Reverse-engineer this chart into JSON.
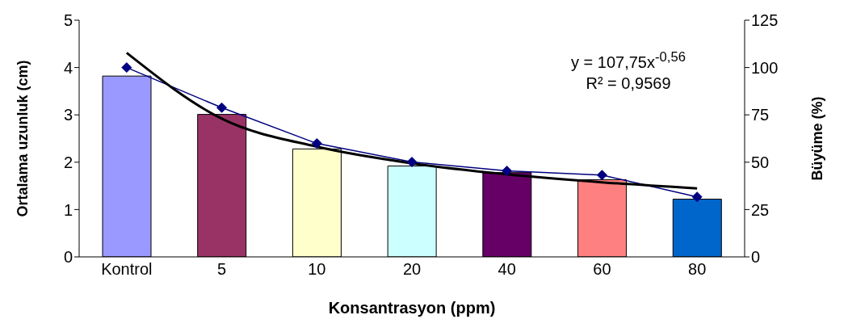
{
  "chart_data": {
    "type": "bar",
    "xlabel": "Konsantrasyon (ppm)",
    "ylabel": "Ortalama uzunluk (cm)",
    "y2label": "Büyüme (%)",
    "categories": [
      "Kontrol",
      "5",
      "10",
      "20",
      "40",
      "60",
      "80"
    ],
    "series": [
      {
        "colors": [
          "#9999ff",
          "#993366",
          "#ffffcc",
          "#ccffff",
          "#660066",
          "#ff8080",
          "#0066cc"
        ],
        "values": [
          3.82,
          3.01,
          2.28,
          1.92,
          1.78,
          1.63,
          1.22
        ]
      },
      {
        "type": "line",
        "axis": "y2",
        "color": "#000080",
        "marker": "diamond",
        "values": [
          100,
          78.8,
          59.9,
          50.1,
          45.4,
          43.2,
          31.7
        ]
      },
      {
        "type": "line",
        "axis": "y2",
        "color": "#000000",
        "marker": "none",
        "values": [
          107.8,
          73,
          58.2,
          49.4,
          43.6,
          39.4,
          36.2
        ]
      }
    ],
    "ylim": [
      0,
      5
    ],
    "yticks": [
      0,
      1,
      2,
      3,
      4,
      5
    ],
    "y2lim": [
      0,
      125
    ],
    "y2ticks": [
      0,
      25,
      50,
      75,
      100,
      125
    ],
    "grid": false,
    "legend": false,
    "annotations": [
      "y = 107,75x$^{-0,56}$",
      "R² = 0,9569"
    ]
  }
}
